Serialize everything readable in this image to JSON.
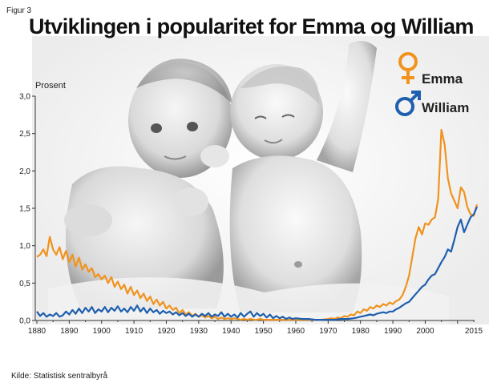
{
  "figure_label": "Figur 3",
  "source": "Kilde: Statistisk sentralbyrå",
  "colors": {
    "emma": "#F0931E",
    "william": "#1F5FAF",
    "axis": "#333333"
  },
  "chart_data": {
    "type": "line",
    "title": "Utviklingen i  popularitet for Emma og William",
    "ylabel": "Prosent",
    "xlabel": "",
    "xlim": [
      1880,
      2015
    ],
    "ylim": [
      0,
      3.0
    ],
    "yticks": [
      0.0,
      0.5,
      1.0,
      1.5,
      2.0,
      2.5,
      3.0
    ],
    "ytick_labels": [
      "0,0",
      "0,5",
      "1,0",
      "1,5",
      "2,0",
      "2,5",
      "3,0"
    ],
    "xticks": [
      1880,
      1890,
      1900,
      1910,
      1920,
      1930,
      1940,
      1950,
      1960,
      1970,
      1980,
      1990,
      2000,
      2015
    ],
    "xtick_labels": [
      "1880",
      "1890",
      "1900",
      "1910",
      "1920",
      "1930",
      "1940",
      "1950",
      "1960",
      "1970",
      "1980",
      "1990",
      "2000",
      "2015"
    ],
    "legend_position": "top-right",
    "series": [
      {
        "name": "Emma",
        "symbol": "♀",
        "points": [
          [
            1880,
            0.85
          ],
          [
            1881,
            0.88
          ],
          [
            1882,
            0.95
          ],
          [
            1883,
            0.86
          ],
          [
            1884,
            1.12
          ],
          [
            1885,
            0.95
          ],
          [
            1886,
            0.88
          ],
          [
            1887,
            0.98
          ],
          [
            1888,
            0.82
          ],
          [
            1889,
            0.93
          ],
          [
            1890,
            0.78
          ],
          [
            1891,
            0.88
          ],
          [
            1892,
            0.72
          ],
          [
            1893,
            0.84
          ],
          [
            1894,
            0.68
          ],
          [
            1895,
            0.75
          ],
          [
            1896,
            0.65
          ],
          [
            1897,
            0.7
          ],
          [
            1898,
            0.58
          ],
          [
            1899,
            0.62
          ],
          [
            1900,
            0.55
          ],
          [
            1901,
            0.6
          ],
          [
            1902,
            0.5
          ],
          [
            1903,
            0.58
          ],
          [
            1904,
            0.45
          ],
          [
            1905,
            0.52
          ],
          [
            1906,
            0.42
          ],
          [
            1907,
            0.48
          ],
          [
            1908,
            0.36
          ],
          [
            1909,
            0.45
          ],
          [
            1910,
            0.34
          ],
          [
            1911,
            0.4
          ],
          [
            1912,
            0.3
          ],
          [
            1913,
            0.36
          ],
          [
            1914,
            0.26
          ],
          [
            1915,
            0.32
          ],
          [
            1916,
            0.22
          ],
          [
            1917,
            0.28
          ],
          [
            1918,
            0.2
          ],
          [
            1919,
            0.25
          ],
          [
            1920,
            0.16
          ],
          [
            1921,
            0.2
          ],
          [
            1922,
            0.14
          ],
          [
            1923,
            0.17
          ],
          [
            1924,
            0.1
          ],
          [
            1925,
            0.14
          ],
          [
            1926,
            0.08
          ],
          [
            1927,
            0.11
          ],
          [
            1928,
            0.06
          ],
          [
            1929,
            0.09
          ],
          [
            1930,
            0.05
          ],
          [
            1931,
            0.07
          ],
          [
            1932,
            0.04
          ],
          [
            1933,
            0.06
          ],
          [
            1934,
            0.03
          ],
          [
            1935,
            0.05
          ],
          [
            1936,
            0.02
          ],
          [
            1937,
            0.04
          ],
          [
            1938,
            0.02
          ],
          [
            1939,
            0.03
          ],
          [
            1940,
            0.02
          ],
          [
            1941,
            0.03
          ],
          [
            1942,
            0.02
          ],
          [
            1943,
            0.01
          ],
          [
            1944,
            0.02
          ],
          [
            1945,
            0.01
          ],
          [
            1946,
            0.02
          ],
          [
            1947,
            0.01
          ],
          [
            1948,
            0.01
          ],
          [
            1949,
            0.02
          ],
          [
            1950,
            0.01
          ],
          [
            1952,
            0.01
          ],
          [
            1954,
            0.01
          ],
          [
            1956,
            0.01
          ],
          [
            1958,
            0.01
          ],
          [
            1960,
            0.01
          ],
          [
            1962,
            0.01
          ],
          [
            1964,
            0.01
          ],
          [
            1966,
            0.01
          ],
          [
            1968,
            0.01
          ],
          [
            1970,
            0.02
          ],
          [
            1971,
            0.03
          ],
          [
            1972,
            0.02
          ],
          [
            1973,
            0.04
          ],
          [
            1974,
            0.03
          ],
          [
            1975,
            0.06
          ],
          [
            1976,
            0.05
          ],
          [
            1977,
            0.08
          ],
          [
            1978,
            0.07
          ],
          [
            1979,
            0.12
          ],
          [
            1980,
            0.1
          ],
          [
            1981,
            0.15
          ],
          [
            1982,
            0.13
          ],
          [
            1983,
            0.18
          ],
          [
            1984,
            0.16
          ],
          [
            1985,
            0.2
          ],
          [
            1986,
            0.18
          ],
          [
            1987,
            0.22
          ],
          [
            1988,
            0.2
          ],
          [
            1989,
            0.24
          ],
          [
            1990,
            0.22
          ],
          [
            1991,
            0.26
          ],
          [
            1992,
            0.28
          ],
          [
            1993,
            0.34
          ],
          [
            1994,
            0.45
          ],
          [
            1995,
            0.6
          ],
          [
            1996,
            0.85
          ],
          [
            1997,
            1.1
          ],
          [
            1998,
            1.25
          ],
          [
            1999,
            1.15
          ],
          [
            2000,
            1.3
          ],
          [
            2001,
            1.28
          ],
          [
            2002,
            1.35
          ],
          [
            2003,
            1.38
          ],
          [
            2004,
            1.62
          ],
          [
            2005,
            2.55
          ],
          [
            2006,
            2.35
          ],
          [
            2007,
            1.9
          ],
          [
            2008,
            1.7
          ],
          [
            2009,
            1.6
          ],
          [
            2010,
            1.5
          ],
          [
            2011,
            1.78
          ],
          [
            2012,
            1.72
          ],
          [
            2013,
            1.52
          ],
          [
            2014,
            1.42
          ],
          [
            2015,
            1.4
          ],
          [
            2016,
            1.55
          ]
        ]
      },
      {
        "name": "William",
        "symbol": "♂",
        "points": [
          [
            1880,
            0.12
          ],
          [
            1881,
            0.06
          ],
          [
            1882,
            0.1
          ],
          [
            1883,
            0.05
          ],
          [
            1884,
            0.08
          ],
          [
            1885,
            0.06
          ],
          [
            1886,
            0.1
          ],
          [
            1887,
            0.05
          ],
          [
            1888,
            0.07
          ],
          [
            1889,
            0.12
          ],
          [
            1890,
            0.08
          ],
          [
            1891,
            0.14
          ],
          [
            1892,
            0.09
          ],
          [
            1893,
            0.16
          ],
          [
            1894,
            0.1
          ],
          [
            1895,
            0.17
          ],
          [
            1896,
            0.12
          ],
          [
            1897,
            0.18
          ],
          [
            1898,
            0.1
          ],
          [
            1899,
            0.15
          ],
          [
            1900,
            0.12
          ],
          [
            1901,
            0.18
          ],
          [
            1902,
            0.11
          ],
          [
            1903,
            0.17
          ],
          [
            1904,
            0.13
          ],
          [
            1905,
            0.19
          ],
          [
            1906,
            0.12
          ],
          [
            1907,
            0.16
          ],
          [
            1908,
            0.11
          ],
          [
            1909,
            0.18
          ],
          [
            1910,
            0.13
          ],
          [
            1911,
            0.2
          ],
          [
            1912,
            0.12
          ],
          [
            1913,
            0.17
          ],
          [
            1914,
            0.1
          ],
          [
            1915,
            0.16
          ],
          [
            1916,
            0.11
          ],
          [
            1917,
            0.14
          ],
          [
            1918,
            0.09
          ],
          [
            1919,
            0.13
          ],
          [
            1920,
            0.1
          ],
          [
            1921,
            0.12
          ],
          [
            1922,
            0.08
          ],
          [
            1923,
            0.11
          ],
          [
            1924,
            0.07
          ],
          [
            1925,
            0.1
          ],
          [
            1926,
            0.06
          ],
          [
            1927,
            0.09
          ],
          [
            1928,
            0.05
          ],
          [
            1929,
            0.08
          ],
          [
            1930,
            0.05
          ],
          [
            1931,
            0.09
          ],
          [
            1932,
            0.06
          ],
          [
            1933,
            0.1
          ],
          [
            1934,
            0.05
          ],
          [
            1935,
            0.08
          ],
          [
            1936,
            0.06
          ],
          [
            1937,
            0.11
          ],
          [
            1938,
            0.05
          ],
          [
            1939,
            0.09
          ],
          [
            1940,
            0.05
          ],
          [
            1941,
            0.08
          ],
          [
            1942,
            0.04
          ],
          [
            1943,
            0.1
          ],
          [
            1944,
            0.05
          ],
          [
            1945,
            0.09
          ],
          [
            1946,
            0.12
          ],
          [
            1947,
            0.05
          ],
          [
            1948,
            0.1
          ],
          [
            1949,
            0.06
          ],
          [
            1950,
            0.09
          ],
          [
            1951,
            0.04
          ],
          [
            1952,
            0.08
          ],
          [
            1953,
            0.03
          ],
          [
            1954,
            0.06
          ],
          [
            1955,
            0.03
          ],
          [
            1956,
            0.05
          ],
          [
            1957,
            0.02
          ],
          [
            1958,
            0.04
          ],
          [
            1959,
            0.02
          ],
          [
            1960,
            0.03
          ],
          [
            1962,
            0.02
          ],
          [
            1964,
            0.02
          ],
          [
            1966,
            0.01
          ],
          [
            1968,
            0.01
          ],
          [
            1970,
            0.01
          ],
          [
            1972,
            0.01
          ],
          [
            1974,
            0.02
          ],
          [
            1976,
            0.02
          ],
          [
            1978,
            0.03
          ],
          [
            1979,
            0.04
          ],
          [
            1980,
            0.05
          ],
          [
            1981,
            0.06
          ],
          [
            1982,
            0.07
          ],
          [
            1983,
            0.08
          ],
          [
            1984,
            0.07
          ],
          [
            1985,
            0.09
          ],
          [
            1986,
            0.1
          ],
          [
            1987,
            0.11
          ],
          [
            1988,
            0.1
          ],
          [
            1989,
            0.12
          ],
          [
            1990,
            0.12
          ],
          [
            1991,
            0.15
          ],
          [
            1992,
            0.17
          ],
          [
            1993,
            0.2
          ],
          [
            1994,
            0.23
          ],
          [
            1995,
            0.25
          ],
          [
            1996,
            0.3
          ],
          [
            1997,
            0.35
          ],
          [
            1998,
            0.4
          ],
          [
            1999,
            0.45
          ],
          [
            2000,
            0.48
          ],
          [
            2001,
            0.55
          ],
          [
            2002,
            0.6
          ],
          [
            2003,
            0.62
          ],
          [
            2004,
            0.7
          ],
          [
            2005,
            0.78
          ],
          [
            2006,
            0.85
          ],
          [
            2007,
            0.95
          ],
          [
            2008,
            0.92
          ],
          [
            2009,
            1.08
          ],
          [
            2010,
            1.25
          ],
          [
            2011,
            1.35
          ],
          [
            2012,
            1.18
          ],
          [
            2013,
            1.28
          ],
          [
            2014,
            1.38
          ],
          [
            2015,
            1.42
          ],
          [
            2016,
            1.52
          ]
        ]
      }
    ]
  }
}
